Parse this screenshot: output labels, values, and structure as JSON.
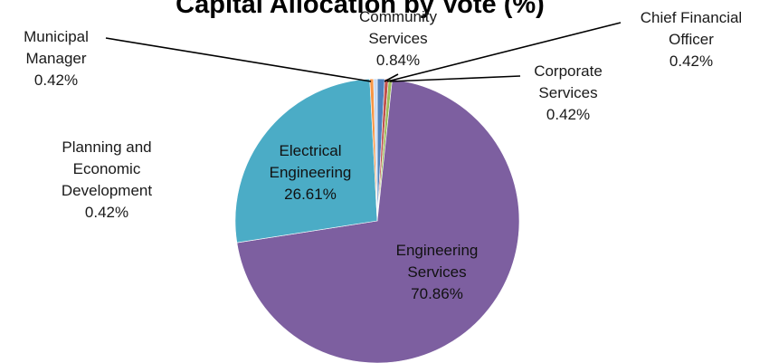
{
  "chart_data": {
    "type": "pie",
    "title": "Capital Allocation by Vote (%)",
    "slices": [
      {
        "name_lines": [
          "Community",
          "Services"
        ],
        "value": 0.84,
        "value_label": "0.84%",
        "color": "#4f81bd"
      },
      {
        "name_lines": [
          "Chief Financial",
          "Officer"
        ],
        "value": 0.42,
        "value_label": "0.42%",
        "color": "#c0504d"
      },
      {
        "name_lines": [
          "Corporate",
          "Services"
        ],
        "value": 0.42,
        "value_label": "0.42%",
        "color": "#9bbb59"
      },
      {
        "name_lines": [
          "Engineering",
          "Services"
        ],
        "value": 70.86,
        "value_label": "70.86%",
        "color": "#7d5fa0"
      },
      {
        "name_lines": [
          "Electrical",
          "Engineering"
        ],
        "value": 26.61,
        "value_label": "26.61%",
        "color": "#4bacc6"
      },
      {
        "name_lines": [
          "Planning and",
          "Economic",
          "Development"
        ],
        "value": 0.42,
        "value_label": "0.42%",
        "color": "#f79646"
      },
      {
        "name_lines": [
          "Municipal",
          "Manager"
        ],
        "value": 0.42,
        "value_label": "0.42%",
        "color": "#c6d9f1"
      }
    ]
  }
}
